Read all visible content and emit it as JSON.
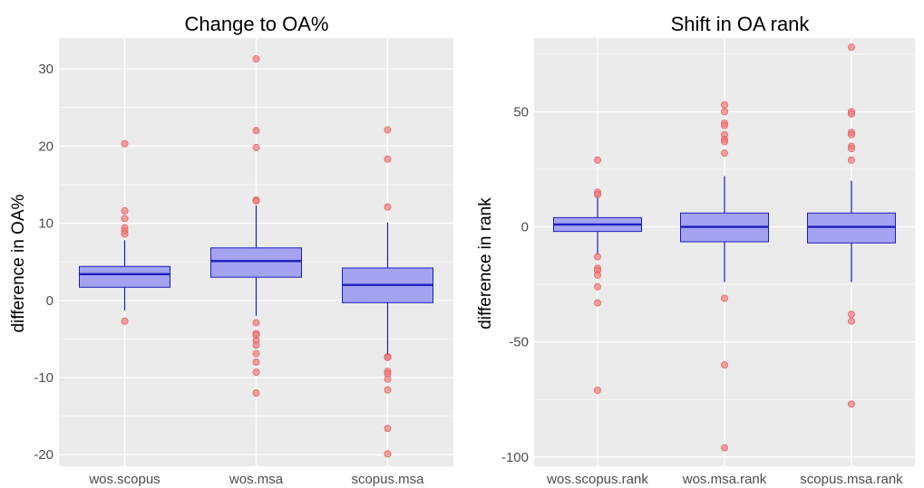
{
  "chart_data": [
    {
      "type": "boxplot",
      "title": "Change to OA%",
      "xlabel": "",
      "ylabel": "difference in OA%",
      "ylim": [
        -21.5,
        34
      ],
      "yticks": [
        -20,
        -10,
        0,
        10,
        20,
        30
      ],
      "grid": true,
      "categories": [
        "wos.scopus",
        "wos.msa",
        "scopus.msa"
      ],
      "boxes": [
        {
          "category": "wos.scopus",
          "q1": 1.7,
          "median": 3.4,
          "q3": 4.4,
          "whisker_low": -1.3,
          "whisker_high": 7.8,
          "outliers": [
            20.3,
            11.6,
            10.6,
            9.4,
            9.0,
            8.6,
            -2.7
          ]
        },
        {
          "category": "wos.msa",
          "q1": 3.0,
          "median": 5.1,
          "q3": 6.8,
          "whisker_low": -2.0,
          "whisker_high": 12.3,
          "outliers": [
            31.3,
            22.0,
            19.8,
            13.0,
            12.9,
            -2.9,
            -4.3,
            -4.5,
            -5.2,
            -5.8,
            -6.9,
            -8.0,
            -9.3,
            -12.0
          ]
        },
        {
          "category": "scopus.msa",
          "q1": -0.3,
          "median": 2.0,
          "q3": 4.2,
          "whisker_low": -7.2,
          "whisker_high": 10.1,
          "outliers": [
            22.1,
            18.3,
            12.1,
            -7.3,
            -7.4,
            -9.2,
            -9.5,
            -10.2,
            -11.6,
            -16.6,
            -19.9
          ]
        }
      ]
    },
    {
      "type": "boxplot",
      "title": "Shift in OA rank",
      "xlabel": "",
      "ylabel": "difference in rank",
      "ylim": [
        -104,
        82
      ],
      "yticks": [
        -100,
        -50,
        0,
        50
      ],
      "grid": true,
      "categories": [
        "wos.scopus.rank",
        "wos.msa.rank",
        "scopus.msa.rank"
      ],
      "boxes": [
        {
          "category": "wos.scopus.rank",
          "q1": -2,
          "median": 1,
          "q3": 4,
          "whisker_low": -12,
          "whisker_high": 14,
          "outliers": [
            29,
            15,
            14,
            -13,
            -18,
            -19,
            -21,
            -26,
            -33,
            -71
          ]
        },
        {
          "category": "wos.msa.rank",
          "q1": -6.5,
          "median": 0,
          "q3": 6,
          "whisker_low": -24,
          "whisker_high": 22,
          "outliers": [
            53,
            50,
            45,
            44,
            40,
            38,
            37,
            32,
            -31,
            -60,
            -96
          ]
        },
        {
          "category": "scopus.msa.rank",
          "q1": -7,
          "median": 0,
          "q3": 6,
          "whisker_low": -24,
          "whisker_high": 20,
          "outliers": [
            78,
            50,
            49,
            41,
            40,
            35,
            34,
            29,
            -38,
            -41,
            -77
          ]
        }
      ]
    }
  ],
  "colors": {
    "box_fill": "#a3a3ef",
    "box_line": "#1d1dc0",
    "outlier": "#f08080",
    "panel_bg": "#ebebeb",
    "grid": "#ffffff"
  }
}
